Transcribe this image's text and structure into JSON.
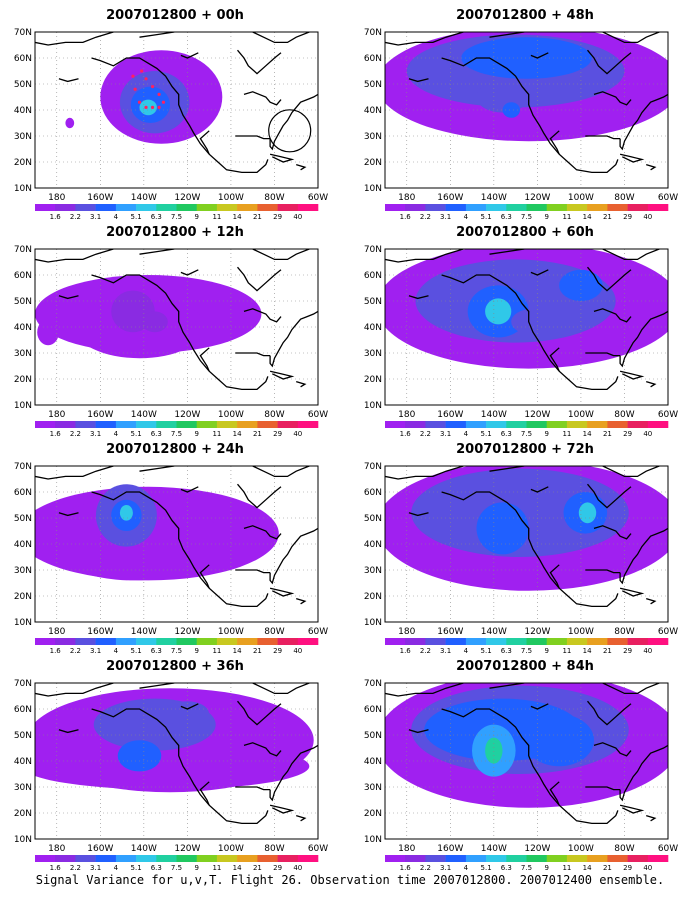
{
  "caption": "Signal Variance for u,v,T. Flight 26. Observation time 2007012800. 2007012400 ensemble.",
  "axes": {
    "lat_labels": [
      "70N",
      "60N",
      "50N",
      "40N",
      "30N",
      "20N",
      "10N"
    ],
    "lon_labels": [
      "180",
      "160W",
      "140W",
      "120W",
      "100W",
      "80W",
      "60W"
    ]
  },
  "colorbar": {
    "levels": [
      "1.6",
      "2.2",
      "3.1",
      "4",
      "5.1",
      "6.3",
      "7.5",
      "9",
      "11",
      "14",
      "21",
      "29",
      "40"
    ],
    "colors": [
      "#a020f0",
      "#8a2be2",
      "#5a50e0",
      "#2060ff",
      "#30a0ff",
      "#30c8e8",
      "#20d0a0",
      "#20c860",
      "#80d020",
      "#c8c820",
      "#e8a020",
      "#e86030",
      "#e82060",
      "#ff1080"
    ]
  },
  "panels": [
    {
      "id": "p00",
      "title": "2007012800 + 00h",
      "lead_hours": 0
    },
    {
      "id": "p48",
      "title": "2007012800 + 48h",
      "lead_hours": 48
    },
    {
      "id": "p12",
      "title": "2007012800 + 12h",
      "lead_hours": 12
    },
    {
      "id": "p60",
      "title": "2007012800 + 60h",
      "lead_hours": 60
    },
    {
      "id": "p24",
      "title": "2007012800 + 24h",
      "lead_hours": 24
    },
    {
      "id": "p72",
      "title": "2007012800 + 72h",
      "lead_hours": 72
    },
    {
      "id": "p36",
      "title": "2007012800 + 36h",
      "lead_hours": 36
    },
    {
      "id": "p84",
      "title": "2007012800 + 84h",
      "lead_hours": 84
    }
  ]
}
